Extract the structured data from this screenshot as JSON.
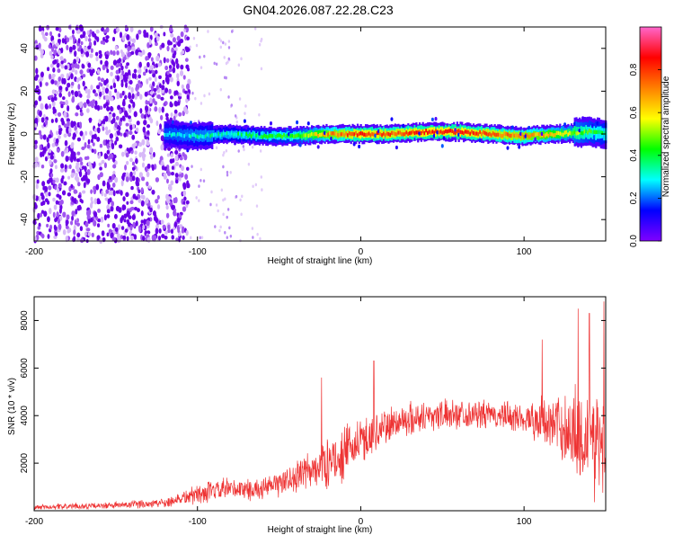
{
  "figure_title": "GN04.2026.087.22.28.C23",
  "chart_data": [
    {
      "type": "heatmap",
      "title": "GN04.2026.087.22.28.C23",
      "xlabel": "Height of straight line (km)",
      "ylabel": "Frequency (Hz)",
      "xlim": [
        -200,
        150
      ],
      "ylim": [
        -50,
        50
      ],
      "x_ticks": [
        -200,
        -100,
        0,
        100
      ],
      "x_tick_labels": [
        "-200",
        "-100",
        "0",
        "100"
      ],
      "y_ticks": [
        -40,
        -20,
        0,
        20,
        40
      ],
      "y_tick_labels": [
        "-40",
        "-20",
        "0",
        "20",
        "40"
      ],
      "grid": false,
      "colorbar": {
        "label": "Normalized spectral amplitude",
        "range": [
          0,
          1
        ],
        "ticks": [
          0,
          0.2,
          0.4,
          0.6,
          0.8
        ],
        "tick_labels": [
          "0.0",
          "0.2",
          "0.4",
          "0.6",
          "0.8"
        ],
        "colormap": [
          "#ff66cc",
          "#ff0000",
          "#ff8000",
          "#ffff00",
          "#00ff00",
          "#00ffff",
          "#0000ff",
          "#8000ff"
        ]
      },
      "features": {
        "noise_region_x": [
          -200,
          -105
        ],
        "sparse_noise_x": [
          -105,
          -60
        ],
        "signal_band_center_hz": 0,
        "signal_band_x": [
          -120,
          150
        ],
        "peak_x": [
          -20,
          130
        ]
      },
      "centerline": [
        {
          "x": -120,
          "y": 0
        },
        {
          "x": -100,
          "y": -1
        },
        {
          "x": -80,
          "y": 0
        },
        {
          "x": -60,
          "y": -1
        },
        {
          "x": -40,
          "y": -1
        },
        {
          "x": -20,
          "y": 0
        },
        {
          "x": 0,
          "y": 0
        },
        {
          "x": 20,
          "y": 0
        },
        {
          "x": 40,
          "y": 1
        },
        {
          "x": 60,
          "y": 1
        },
        {
          "x": 80,
          "y": 0
        },
        {
          "x": 100,
          "y": -1
        },
        {
          "x": 120,
          "y": 0
        },
        {
          "x": 140,
          "y": 1
        },
        {
          "x": 150,
          "y": 0
        }
      ],
      "amplitude_profile": [
        {
          "x": -120,
          "amp": 0.3
        },
        {
          "x": -100,
          "amp": 0.35
        },
        {
          "x": -80,
          "amp": 0.4
        },
        {
          "x": -60,
          "amp": 0.45
        },
        {
          "x": -40,
          "amp": 0.5
        },
        {
          "x": -20,
          "amp": 0.8
        },
        {
          "x": 0,
          "amp": 0.95
        },
        {
          "x": 20,
          "amp": 0.9
        },
        {
          "x": 40,
          "amp": 0.95
        },
        {
          "x": 60,
          "amp": 0.95
        },
        {
          "x": 80,
          "amp": 0.9
        },
        {
          "x": 100,
          "amp": 0.85
        },
        {
          "x": 120,
          "amp": 0.7
        },
        {
          "x": 140,
          "amp": 0.5
        },
        {
          "x": 150,
          "amp": 0.45
        }
      ]
    },
    {
      "type": "line",
      "xlabel": "Height of straight line (km)",
      "ylabel": "SNR (10 * v/v)",
      "xlim": [
        -200,
        150
      ],
      "ylim": [
        0,
        9000
      ],
      "x_ticks": [
        -200,
        -100,
        0,
        100
      ],
      "x_tick_labels": [
        "-200",
        "-100",
        "0",
        "100"
      ],
      "y_ticks": [
        2000,
        4000,
        6000,
        8000
      ],
      "y_tick_labels": [
        "2000",
        "4000",
        "6000",
        "8000"
      ],
      "grid": false,
      "series": [
        {
          "name": "SNR",
          "color": "#ee3333",
          "envelope": [
            {
              "x": -200,
              "mean": 150,
              "spread": 150
            },
            {
              "x": -180,
              "mean": 180,
              "spread": 150
            },
            {
              "x": -160,
              "mean": 200,
              "spread": 150
            },
            {
              "x": -140,
              "mean": 250,
              "spread": 200
            },
            {
              "x": -120,
              "mean": 350,
              "spread": 250
            },
            {
              "x": -100,
              "mean": 700,
              "spread": 500
            },
            {
              "x": -80,
              "mean": 900,
              "spread": 600
            },
            {
              "x": -60,
              "mean": 900,
              "spread": 500
            },
            {
              "x": -40,
              "mean": 1400,
              "spread": 800
            },
            {
              "x": -20,
              "mean": 2000,
              "spread": 1200
            },
            {
              "x": -10,
              "mean": 2400,
              "spread": 1300
            },
            {
              "x": 0,
              "mean": 2900,
              "spread": 1200
            },
            {
              "x": 10,
              "mean": 3300,
              "spread": 1000
            },
            {
              "x": 20,
              "mean": 3700,
              "spread": 900
            },
            {
              "x": 40,
              "mean": 4000,
              "spread": 800
            },
            {
              "x": 60,
              "mean": 4100,
              "spread": 700
            },
            {
              "x": 80,
              "mean": 4000,
              "spread": 700
            },
            {
              "x": 100,
              "mean": 3900,
              "spread": 800
            },
            {
              "x": 110,
              "mean": 3800,
              "spread": 1100
            },
            {
              "x": 120,
              "mean": 3600,
              "spread": 1500
            },
            {
              "x": 130,
              "mean": 3300,
              "spread": 2300
            },
            {
              "x": 140,
              "mean": 3000,
              "spread": 2800
            },
            {
              "x": 150,
              "mean": 2800,
              "spread": 3000
            }
          ],
          "spikes": [
            {
              "x": -24,
              "value": 5600
            },
            {
              "x": 8,
              "value": 6300
            },
            {
              "x": 111,
              "value": 7200
            },
            {
              "x": 133,
              "value": 8500
            },
            {
              "x": 140,
              "value": 8300
            },
            {
              "x": 149,
              "value": 8800
            }
          ]
        }
      ]
    }
  ]
}
